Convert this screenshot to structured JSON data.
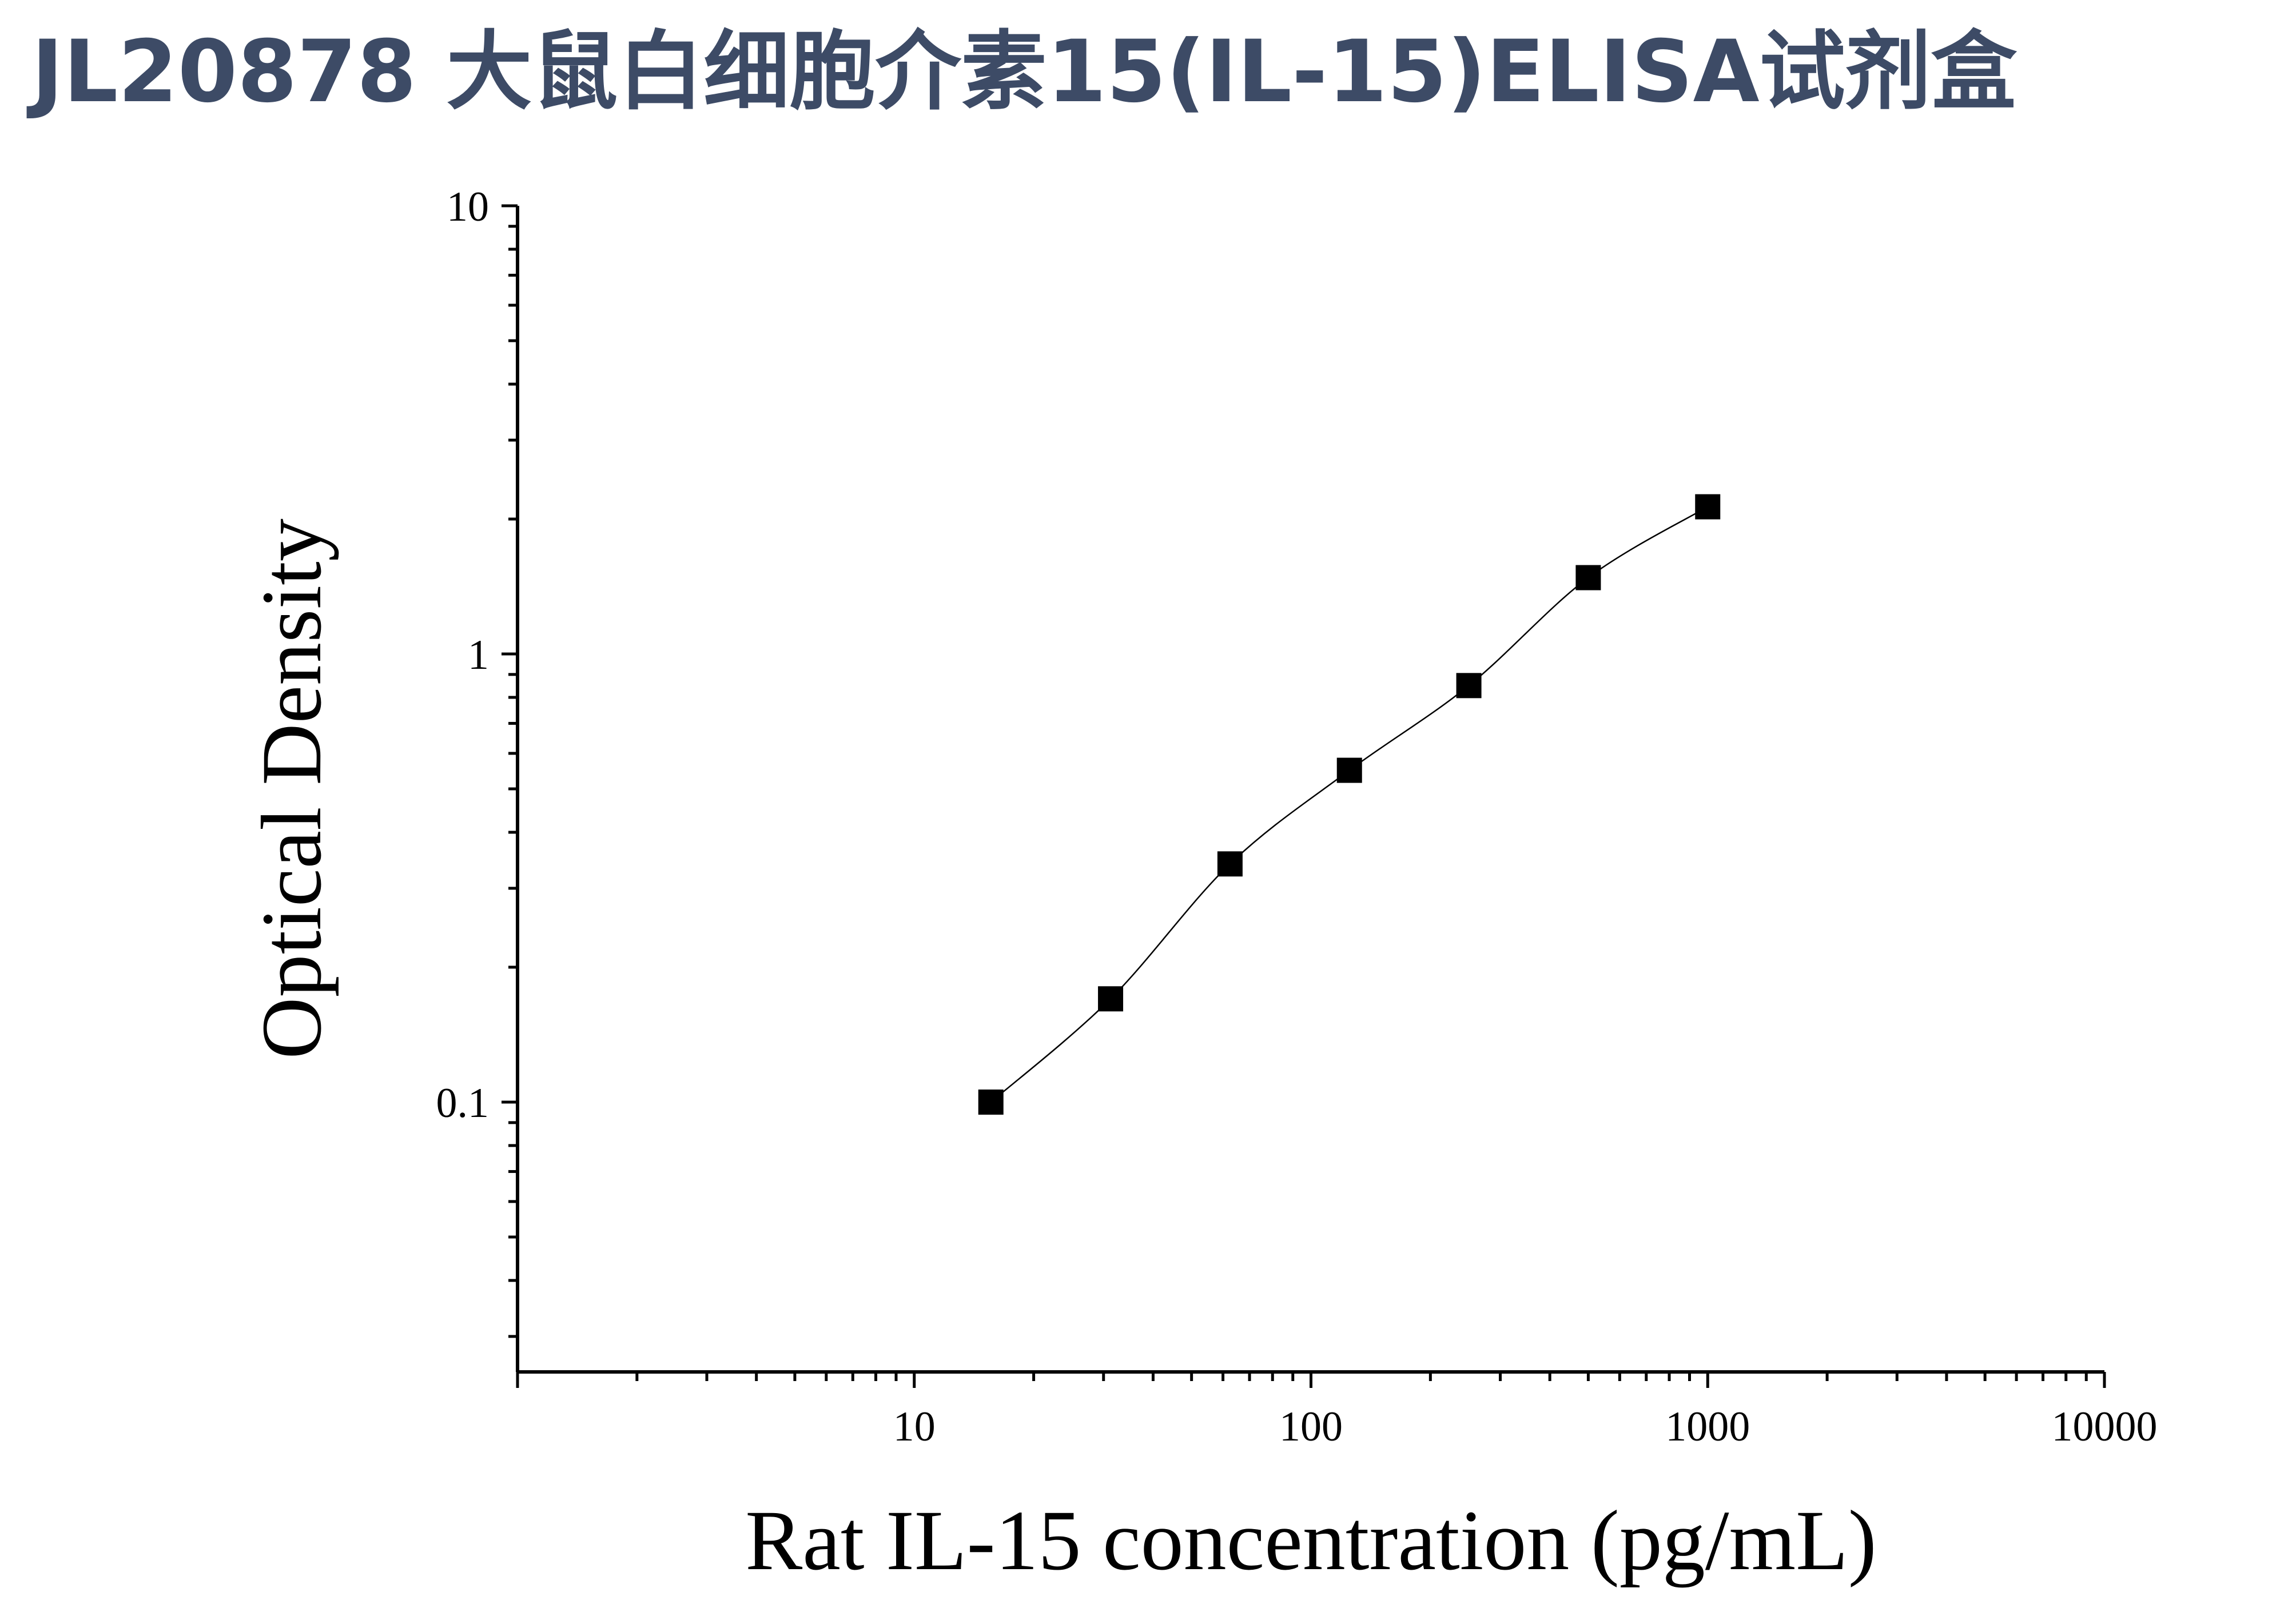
{
  "title": "JL20878 大鼠白细胞介素15(IL-15)ELISA试剂盒",
  "chart_data": {
    "type": "scatter",
    "title": "JL20878 大鼠白细胞介素15(IL-15)ELISA试剂盒",
    "xlabel": "Rat IL-15 concentration (pg/mL)",
    "ylabel": "Optical Density",
    "x_scale": "log",
    "y_scale": "log",
    "xlim": [
      1,
      10000
    ],
    "ylim": [
      0.025,
      10
    ],
    "x_ticks": [
      {
        "value": 10,
        "label": "10"
      },
      {
        "value": 100,
        "label": "100"
      },
      {
        "value": 1000,
        "label": "1000"
      },
      {
        "value": 10000,
        "label": "10000"
      }
    ],
    "y_ticks": [
      {
        "value": 0.1,
        "label": "0.1"
      },
      {
        "value": 1,
        "label": "1"
      },
      {
        "value": 10,
        "label": "10"
      }
    ],
    "grid": false,
    "marker": "square",
    "marker_color": "#000000",
    "fit_curve": true,
    "points": [
      {
        "x": 15.6,
        "y": 0.1
      },
      {
        "x": 31.25,
        "y": 0.17
      },
      {
        "x": 62.5,
        "y": 0.34
      },
      {
        "x": 125,
        "y": 0.55
      },
      {
        "x": 250,
        "y": 0.85
      },
      {
        "x": 500,
        "y": 1.48
      },
      {
        "x": 1000,
        "y": 2.13
      }
    ]
  }
}
